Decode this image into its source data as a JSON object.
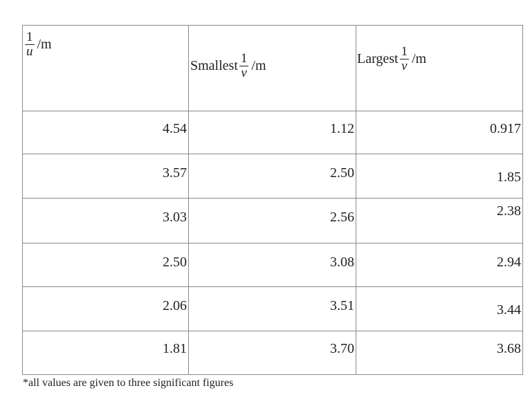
{
  "table": {
    "headers": [
      {
        "prefix": "",
        "numerator": "1",
        "denominator": "u",
        "unit": "/m"
      },
      {
        "prefix": "Smallest",
        "numerator": "1",
        "denominator": "v",
        "unit": "/m"
      },
      {
        "prefix": "Largest",
        "numerator": "1",
        "denominator": "v",
        "unit": "/m"
      }
    ],
    "rows": [
      [
        "4.54",
        "1.12",
        "0.917"
      ],
      [
        "3.57",
        "2.50",
        "1.85"
      ],
      [
        "3.03",
        "2.56",
        "2.38"
      ],
      [
        "2.50",
        "3.08",
        "2.94"
      ],
      [
        "2.06",
        "3.51",
        "3.44"
      ],
      [
        "1.81",
        "3.70",
        "3.68"
      ]
    ]
  },
  "footnote": "*all values are given to three significant figures"
}
